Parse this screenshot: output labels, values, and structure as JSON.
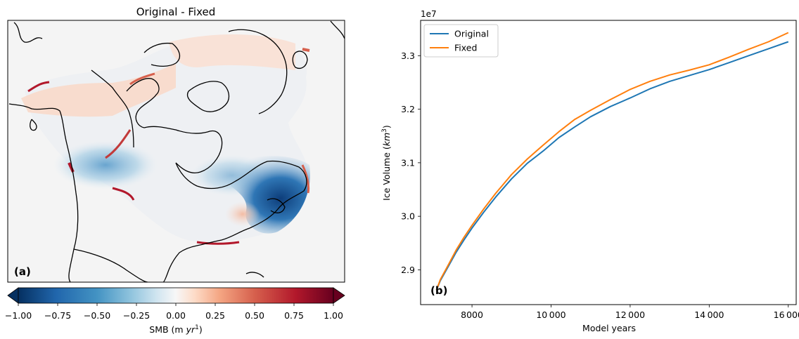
{
  "panel_a": {
    "title": "Original - Fixed",
    "panel_label": "(a)",
    "colorbar": {
      "label_prefix": "SMB (m ",
      "label_unit": "yr",
      "label_exponent": "1",
      "label_suffix": ")",
      "min": -1.0,
      "max": 1.0,
      "extend": "both",
      "ticks": [
        "−1.00",
        "−0.75",
        "−0.50",
        "−0.25",
        "0.00",
        "0.25",
        "0.50",
        "0.75",
        "1.00"
      ],
      "tick_values": [
        -1.0,
        -0.75,
        -0.5,
        -0.25,
        0.0,
        0.25,
        0.5,
        0.75,
        1.0
      ],
      "colormap": "RdBu_r",
      "colors": {
        "neg_end": "#053061",
        "neg_mid": "#2166ac",
        "neg_light": "#92c5de",
        "zero": "#f7f7f7",
        "pos_light": "#f4a582",
        "pos_mid": "#b2182b",
        "pos_end": "#67001f"
      }
    },
    "map_colors": {
      "background": "#f4f4f4",
      "coastline": "#000000"
    }
  },
  "chart_data": {
    "type": "line",
    "panel_label": "(b)",
    "offset_text": "1e7",
    "xlabel": "Model years",
    "ylabel_prefix": "Ice Volume (",
    "ylabel_unit": "km",
    "ylabel_exponent": "3",
    "ylabel_suffix": ")",
    "xlim": [
      6700,
      16200
    ],
    "ylim": [
      28.35,
      33.66
    ],
    "xticks": [
      8000,
      10000,
      12000,
      14000,
      16000
    ],
    "xtick_labels": [
      "8000",
      "10 000",
      "12 000",
      "14 000",
      "16 000"
    ],
    "yticks": [
      29.0,
      30.0,
      31.0,
      32.0,
      33.0
    ],
    "ytick_labels": [
      "2.9",
      "3.0",
      "3.1",
      "3.2",
      "3.3"
    ],
    "legend_position": "top-left",
    "grid": false,
    "series": [
      {
        "name": "Original",
        "color": "#1f77b4",
        "x": [
          7100,
          7200,
          7400,
          7600,
          7800,
          8000,
          8300,
          8600,
          9000,
          9400,
          9800,
          10200,
          10600,
          11000,
          11500,
          12000,
          12500,
          13000,
          13500,
          14000,
          14500,
          15000,
          15500,
          16000
        ],
        "y": [
          28.62,
          28.8,
          29.06,
          29.33,
          29.56,
          29.78,
          30.08,
          30.36,
          30.7,
          30.99,
          31.22,
          31.47,
          31.67,
          31.86,
          32.05,
          32.21,
          32.38,
          32.52,
          32.63,
          32.74,
          32.87,
          33.0,
          33.13,
          33.26
        ]
      },
      {
        "name": "Fixed",
        "color": "#ff7f0e",
        "x": [
          7100,
          7200,
          7400,
          7600,
          7800,
          8000,
          8300,
          8600,
          9000,
          9400,
          9800,
          10200,
          10600,
          11000,
          11500,
          12000,
          12500,
          13000,
          13500,
          14000,
          14500,
          15000,
          15500,
          16000
        ],
        "y": [
          28.62,
          28.82,
          29.09,
          29.37,
          29.61,
          29.83,
          30.14,
          30.43,
          30.78,
          31.07,
          31.33,
          31.58,
          31.81,
          31.98,
          32.18,
          32.37,
          32.52,
          32.64,
          32.73,
          32.83,
          32.97,
          33.12,
          33.26,
          33.43
        ]
      }
    ]
  }
}
